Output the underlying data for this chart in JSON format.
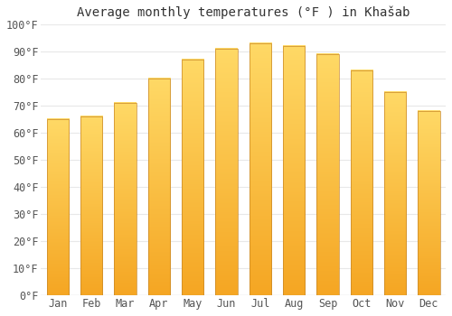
{
  "title": "Average monthly temperatures (°F ) in Khašab",
  "months": [
    "Jan",
    "Feb",
    "Mar",
    "Apr",
    "May",
    "Jun",
    "Jul",
    "Aug",
    "Sep",
    "Oct",
    "Nov",
    "Dec"
  ],
  "values": [
    65,
    66,
    71,
    80,
    87,
    91,
    93,
    92,
    89,
    83,
    75,
    68
  ],
  "bar_color_bottom": "#F5A623",
  "bar_color_top": "#FFD966",
  "bar_border_color": "#C8882A",
  "ylim": [
    0,
    100
  ],
  "yticks": [
    0,
    10,
    20,
    30,
    40,
    50,
    60,
    70,
    80,
    90,
    100
  ],
  "ytick_labels": [
    "0°F",
    "10°F",
    "20°F",
    "30°F",
    "40°F",
    "50°F",
    "60°F",
    "70°F",
    "80°F",
    "90°F",
    "100°F"
  ],
  "background_color": "#FFFFFF",
  "grid_color": "#E8E8E8",
  "title_fontsize": 10,
  "tick_fontsize": 8.5,
  "bar_width": 0.65
}
